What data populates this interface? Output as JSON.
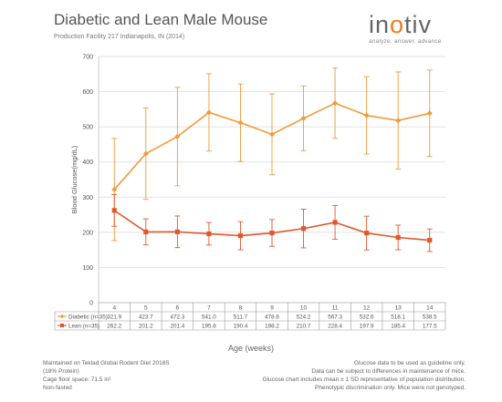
{
  "header": {
    "title": "Diabetic and Lean Male Mouse",
    "subtitle": "Production Facility 217 Indianapolis, IN (2014)"
  },
  "logo": {
    "brand": "inotiv",
    "tagline": "analyze. answer. advance"
  },
  "colors": {
    "diabetic": "#f29a38",
    "lean": "#e2572a",
    "grid": "#d9d9d9",
    "brand_accent": "#f07c1e"
  },
  "chart_data": {
    "type": "line",
    "x": [
      4,
      5,
      6,
      7,
      8,
      9,
      10,
      11,
      12,
      13,
      14
    ],
    "xlabel": "Age (weeks)",
    "ylabel": "Blood Glucose(mg/dL)",
    "ylim": [
      0,
      700
    ],
    "yticks": [
      0,
      100,
      200,
      300,
      400,
      500,
      600,
      700
    ],
    "grid": true,
    "series": [
      {
        "name": "Diabetic (n=35)",
        "marker": "diamond",
        "values": [
          321.9,
          423.7,
          472.3,
          541.0,
          511.7,
          478.6,
          524.2,
          567.3,
          532.6,
          518.1,
          538.5
        ],
        "error": [
          145,
          130,
          140,
          110,
          110,
          115,
          92,
          100,
          110,
          138,
          123
        ]
      },
      {
        "name": "Lean (n=35)",
        "marker": "square",
        "values": [
          262.2,
          201.2,
          201.4,
          195.8,
          190.4,
          198.2,
          210.7,
          228.4,
          197.9,
          185.4,
          177.5
        ],
        "error": [
          45,
          37,
          45,
          32,
          40,
          38,
          55,
          48,
          48,
          35,
          32
        ]
      }
    ],
    "table": {
      "rows": [
        [
          "321.9",
          "423.7",
          "472.3",
          "541.0",
          "511.7",
          "478.6",
          "524.2",
          "567.3",
          "532.6",
          "518.1",
          "538.5"
        ],
        [
          "262.2",
          "201.2",
          "201.4",
          "195.8",
          "190.4",
          "198.2",
          "210.7",
          "228.4",
          "197.9",
          "185.4",
          "177.5"
        ]
      ]
    }
  },
  "footer": {
    "left": [
      "Maintained on Teklad Global Rodent Diet 2018S",
      "(18% Protein)",
      "Cage floor space: 71.5 in²",
      "Non-fasted"
    ],
    "right": [
      "Glucose data to be used as guideline only.",
      "Data can be subject to differences in maintenance of mice.",
      "Glucose chart includes mean ± 1 SD representative of population distribution.",
      "Phenotypic discrimination only.   Mice were not genotyped."
    ]
  }
}
